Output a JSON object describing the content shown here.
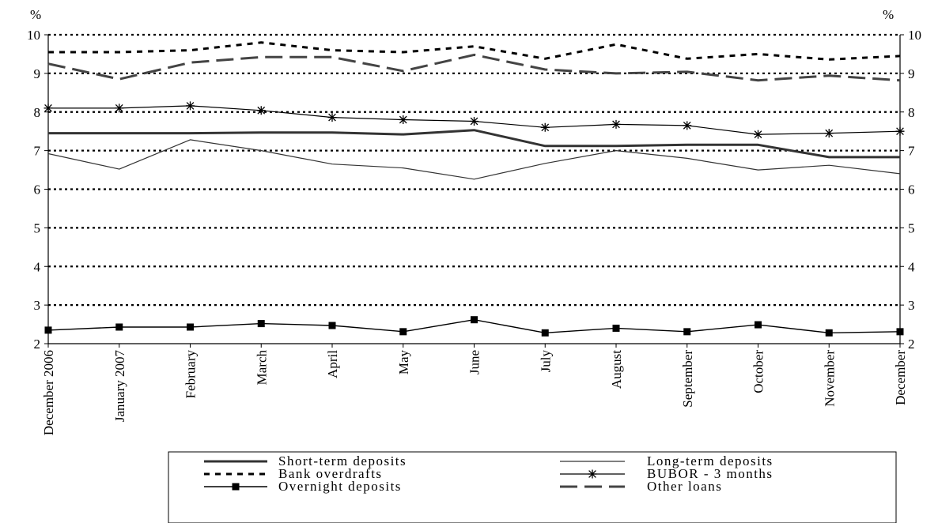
{
  "chart_data": {
    "type": "line",
    "y_unit_left": "%",
    "y_unit_right": "%",
    "ylim": [
      2,
      10
    ],
    "yticks": [
      2,
      3,
      4,
      5,
      6,
      7,
      8,
      9,
      10
    ],
    "grid": "horizontal dotted",
    "legend_position": "bottom",
    "categories": [
      "December 2006",
      "January 2007",
      "February",
      "March",
      "April",
      "May",
      "June",
      "July",
      "August",
      "September",
      "October",
      "November",
      "December"
    ],
    "series": [
      {
        "name": "Short-term deposits",
        "style": "thick-solid",
        "color": "#333333",
        "values": [
          7.45,
          7.45,
          7.45,
          7.47,
          7.47,
          7.42,
          7.53,
          7.12,
          7.12,
          7.15,
          7.15,
          6.83,
          6.83
        ]
      },
      {
        "name": "Long-term deposits",
        "style": "thin-solid",
        "color": "#333333",
        "values": [
          6.92,
          6.52,
          7.28,
          7.0,
          6.65,
          6.55,
          6.26,
          6.67,
          7.0,
          6.8,
          6.5,
          6.62,
          6.4
        ]
      },
      {
        "name": "Bank overdrafts",
        "style": "short-dash",
        "color": "#000000",
        "values": [
          9.55,
          9.55,
          9.6,
          9.8,
          9.6,
          9.55,
          9.7,
          9.38,
          9.75,
          9.38,
          9.5,
          9.36,
          9.45
        ]
      },
      {
        "name": "BUBOR - 3 months",
        "style": "star-markers",
        "color": "#000000",
        "values": [
          8.1,
          8.1,
          8.16,
          8.04,
          7.86,
          7.8,
          7.76,
          7.6,
          7.68,
          7.65,
          7.42,
          7.45,
          7.5
        ]
      },
      {
        "name": "Overnight deposits",
        "style": "square-markers",
        "color": "#000000",
        "values": [
          2.35,
          2.43,
          2.43,
          2.52,
          2.47,
          2.31,
          2.62,
          2.28,
          2.4,
          2.31,
          2.49,
          2.28,
          2.31
        ]
      },
      {
        "name": "Other loans",
        "style": "long-dash",
        "color": "#444444",
        "values": [
          9.25,
          8.85,
          9.28,
          9.42,
          9.42,
          9.06,
          9.48,
          9.1,
          9.0,
          9.04,
          8.82,
          8.94,
          8.82
        ]
      }
    ]
  }
}
